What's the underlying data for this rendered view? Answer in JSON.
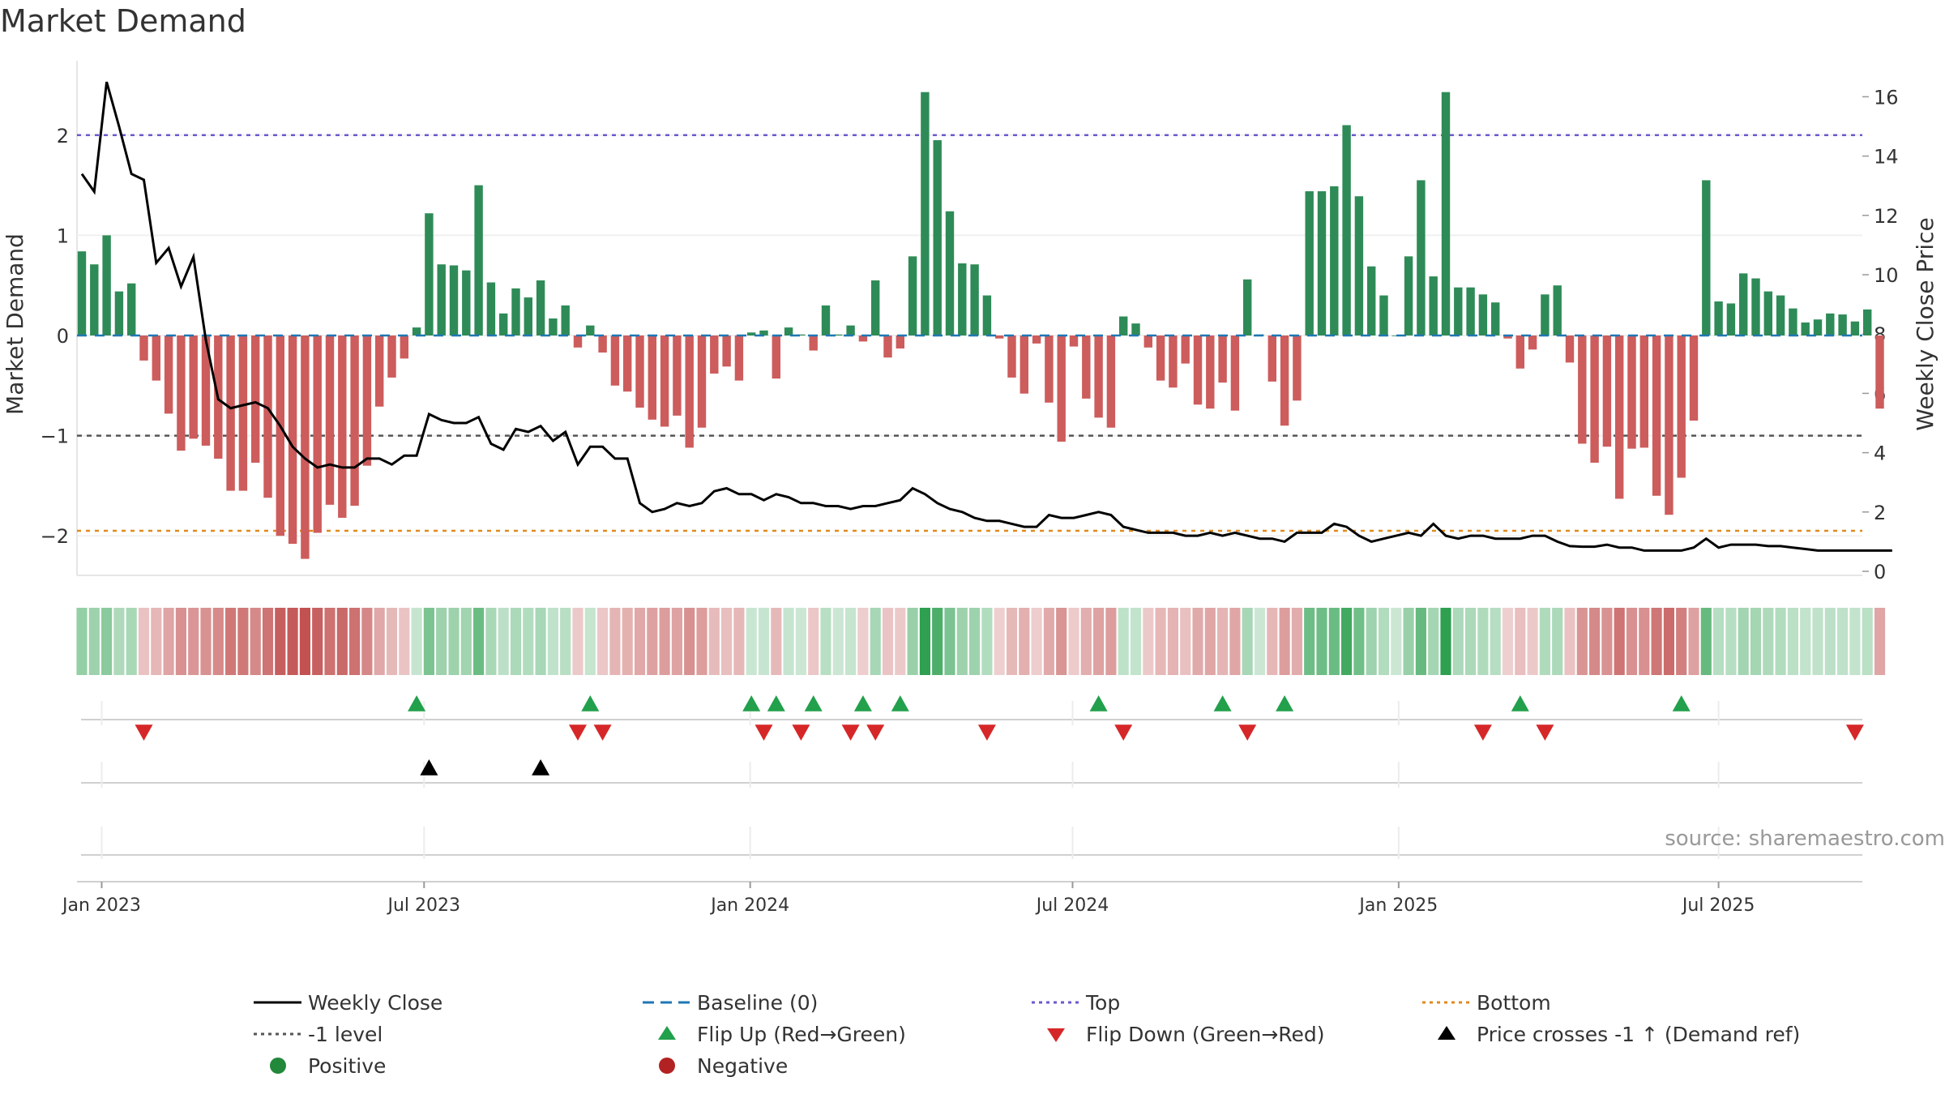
{
  "title": "Market Demand",
  "source": "source: sharemaestro.com",
  "colors": {
    "positive": "#2e8b57",
    "negative": "#cd5c5c",
    "close": "#000000",
    "baseline": "#1f77b4",
    "top": "#6a5acd",
    "bottom": "#e08a1e",
    "minus1": "#555555",
    "flip_up": "#22a04b",
    "flip_down": "#d62728",
    "cross": "#000000"
  },
  "chart_data": {
    "type": "bar",
    "title": "Market Demand",
    "ylabel": "Market Demand",
    "y2label": "Weekly Close Price",
    "ylim": [
      -2.4,
      2.6
    ],
    "y2lim": [
      0,
      16.7
    ],
    "yticks": [
      2,
      1,
      0,
      -1,
      -2
    ],
    "yticklabels": [
      "2",
      "1",
      "0",
      "−1",
      "−2"
    ],
    "y2ticks": [
      16,
      14,
      12,
      10,
      8,
      6,
      4,
      2,
      0
    ],
    "y2ticklabels": [
      "16",
      "14",
      "12",
      "10",
      "8",
      "6",
      "4",
      "2",
      "0"
    ],
    "xticks": [
      "Jan 2023",
      "Jul 2023",
      "Jan 2024",
      "Jul 2024",
      "Jan 2025",
      "Jul 2025"
    ],
    "xtick_weeks": [
      1.6,
      27.6,
      53.9,
      79.9,
      106.2,
      132.0
    ],
    "reference_lines": [
      {
        "name": "Top",
        "value": 2.0
      },
      {
        "name": "-1 level",
        "value": -1.0
      },
      {
        "name": "Bottom",
        "value": -1.95
      }
    ],
    "series": [
      {
        "name": "Market Demand",
        "values": [
          0.84,
          0.71,
          1.0,
          0.44,
          0.52,
          -0.25,
          -0.45,
          -0.78,
          -1.15,
          -1.03,
          -1.1,
          -1.23,
          -1.55,
          -1.55,
          -1.27,
          -1.62,
          -2.0,
          -2.08,
          -2.23,
          -1.97,
          -1.69,
          -1.82,
          -1.7,
          -1.3,
          -0.71,
          -0.42,
          -0.23,
          0.08,
          1.22,
          0.71,
          0.7,
          0.65,
          1.5,
          0.53,
          0.22,
          0.47,
          0.38,
          0.55,
          0.17,
          0.3,
          -0.12,
          0.1,
          -0.17,
          -0.5,
          -0.56,
          -0.72,
          -0.84,
          -0.91,
          -0.8,
          -1.12,
          -0.92,
          -0.38,
          -0.31,
          -0.45,
          0.03,
          0.05,
          -0.43,
          0.08,
          0.01,
          -0.15,
          0.3,
          0.01,
          0.1,
          -0.06,
          0.55,
          -0.22,
          -0.13,
          0.79,
          2.43,
          1.95,
          1.24,
          0.72,
          0.71,
          0.4,
          -0.03,
          -0.42,
          -0.58,
          -0.08,
          -0.67,
          -1.06,
          -0.11,
          -0.63,
          -0.82,
          -0.92,
          0.19,
          0.12,
          -0.12,
          -0.45,
          -0.52,
          -0.28,
          -0.69,
          -0.73,
          -0.47,
          -0.75,
          0.56,
          0.01,
          -0.46,
          -0.9,
          -0.65,
          1.44,
          1.44,
          1.49,
          2.1,
          1.39,
          0.69,
          0.4,
          0.0,
          0.79,
          1.55,
          0.59,
          2.43,
          0.48,
          0.48,
          0.41,
          0.33,
          -0.03,
          -0.33,
          -0.14,
          0.41,
          0.5,
          -0.27,
          -1.08,
          -1.27,
          -1.11,
          -1.63,
          -1.13,
          -1.12,
          -1.6,
          -1.79,
          -1.42,
          -0.85,
          1.55,
          0.34,
          0.32,
          0.62,
          0.57,
          0.44,
          0.4,
          0.27,
          0.13,
          0.16,
          0.22,
          0.21,
          0.14,
          0.26,
          -0.73
        ]
      },
      {
        "name": "Weekly Close",
        "values": [
          13.4,
          12.8,
          16.5,
          15.0,
          13.4,
          13.2,
          10.4,
          10.9,
          9.6,
          10.6,
          7.8,
          5.8,
          5.5,
          5.6,
          5.7,
          5.5,
          4.9,
          4.2,
          3.8,
          3.5,
          3.6,
          3.5,
          3.5,
          3.8,
          3.8,
          3.6,
          3.9,
          3.9,
          5.3,
          5.1,
          5.0,
          5.0,
          5.2,
          4.3,
          4.1,
          4.8,
          4.7,
          4.9,
          4.4,
          4.7,
          3.6,
          4.2,
          4.2,
          3.8,
          3.8,
          2.3,
          2.0,
          2.1,
          2.3,
          2.2,
          2.3,
          2.7,
          2.8,
          2.6,
          2.6,
          2.4,
          2.6,
          2.5,
          2.3,
          2.3,
          2.2,
          2.2,
          2.1,
          2.2,
          2.2,
          2.3,
          2.4,
          2.8,
          2.6,
          2.3,
          2.1,
          2.0,
          1.8,
          1.7,
          1.7,
          1.6,
          1.5,
          1.5,
          1.9,
          1.8,
          1.8,
          1.9,
          2.0,
          1.9,
          1.5,
          1.4,
          1.3,
          1.3,
          1.3,
          1.2,
          1.2,
          1.3,
          1.2,
          1.3,
          1.2,
          1.1,
          1.1,
          1.0,
          1.3,
          1.3,
          1.3,
          1.6,
          1.5,
          1.2,
          1.0,
          1.1,
          1.2,
          1.3,
          1.2,
          1.6,
          1.2,
          1.1,
          1.2,
          1.2,
          1.1,
          1.1,
          1.1,
          1.2,
          1.2,
          1.0,
          0.85,
          0.83,
          0.83,
          0.9,
          0.8,
          0.8,
          0.7,
          0.7,
          0.7,
          0.7,
          0.8,
          1.1,
          0.8,
          0.9,
          0.9,
          0.9,
          0.85,
          0.85,
          0.8,
          0.75,
          0.7,
          0.7,
          0.7,
          0.7,
          0.7,
          0.7,
          0.7
        ]
      }
    ],
    "flip_up_weeks": [
      27,
      41,
      54,
      56,
      59,
      63,
      66,
      82,
      92,
      97,
      116,
      129
    ],
    "flip_down_weeks": [
      5,
      40,
      42,
      55,
      58,
      62,
      64,
      73,
      84,
      94,
      113,
      118,
      143
    ],
    "price_cross_weeks": [
      28,
      37
    ]
  },
  "legend": [
    {
      "label": "Weekly Close",
      "symbol": "solid-line",
      "color": "#000000"
    },
    {
      "label": "Baseline (0)",
      "symbol": "dash-line",
      "color": "#1f77b4"
    },
    {
      "label": "Top",
      "symbol": "dot-line",
      "color": "#6a5acd"
    },
    {
      "label": "Bottom",
      "symbol": "dot-line",
      "color": "#e08a1e"
    },
    {
      "label": "-1 level",
      "symbol": "dot-line",
      "color": "#555555"
    },
    {
      "label": "Flip Up (Red→Green)",
      "symbol": "triangle-up",
      "color": "#22a04b"
    },
    {
      "label": "Flip Down (Green→Red)",
      "symbol": "triangle-down",
      "color": "#d62728"
    },
    {
      "label": "Price crosses -1 ↑ (Demand ref)",
      "symbol": "triangle-up",
      "color": "#000000"
    },
    {
      "label": "Positive",
      "symbol": "circle",
      "color": "#22883a"
    },
    {
      "label": "Negative",
      "symbol": "circle",
      "color": "#b22222"
    }
  ]
}
